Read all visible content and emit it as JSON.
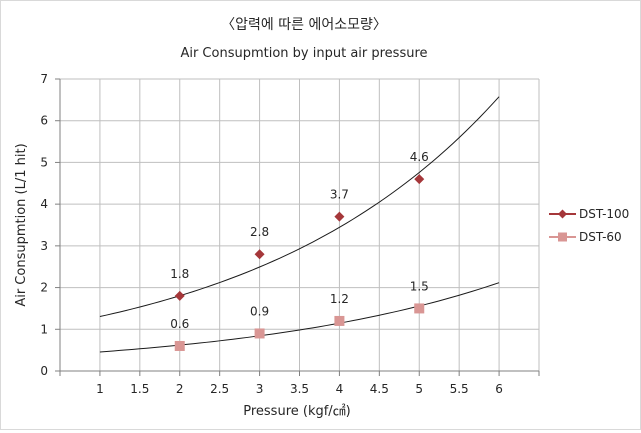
{
  "chart_data": {
    "type": "scatter",
    "title": "〈압력에 따른 에어소모량〉",
    "subtitle": "Air Consupmtion by input air pressure",
    "xlabel": "Pressure (kgf/㎠)",
    "ylabel": "Air Consupmtion (L/1 hit)",
    "xlim": [
      0.5,
      6.5
    ],
    "ylim": [
      0,
      7
    ],
    "x_ticks": [
      "1",
      "1.5",
      "2",
      "2.5",
      "3",
      "3.5",
      "4",
      "4.5",
      "5",
      "5.5",
      "6"
    ],
    "y_ticks": [
      "0",
      "1",
      "2",
      "3",
      "4",
      "5",
      "6",
      "7"
    ],
    "grid": true,
    "legend_position": "right",
    "series": [
      {
        "name": "DST-100",
        "color": "#a5373a",
        "marker": "diamond",
        "x": [
          2,
          3,
          4,
          5
        ],
        "y": [
          1.8,
          2.8,
          3.7,
          4.6
        ],
        "labels": [
          "1.8",
          "2.8",
          "3.7",
          "4.6"
        ],
        "trendline": {
          "type": "exponential",
          "a": 0.9447,
          "b": 0.3234,
          "x_range": [
            1,
            6
          ]
        }
      },
      {
        "name": "DST-60",
        "color": "#d99694",
        "marker": "square",
        "x": [
          2,
          3,
          4,
          5
        ],
        "y": [
          0.6,
          0.9,
          1.2,
          1.5
        ],
        "labels": [
          "0.6",
          "0.9",
          "1.2",
          "1.5"
        ],
        "trendline": {
          "type": "exponential",
          "a": 0.3362,
          "b": 0.3067,
          "x_range": [
            1,
            6
          ]
        }
      }
    ]
  }
}
